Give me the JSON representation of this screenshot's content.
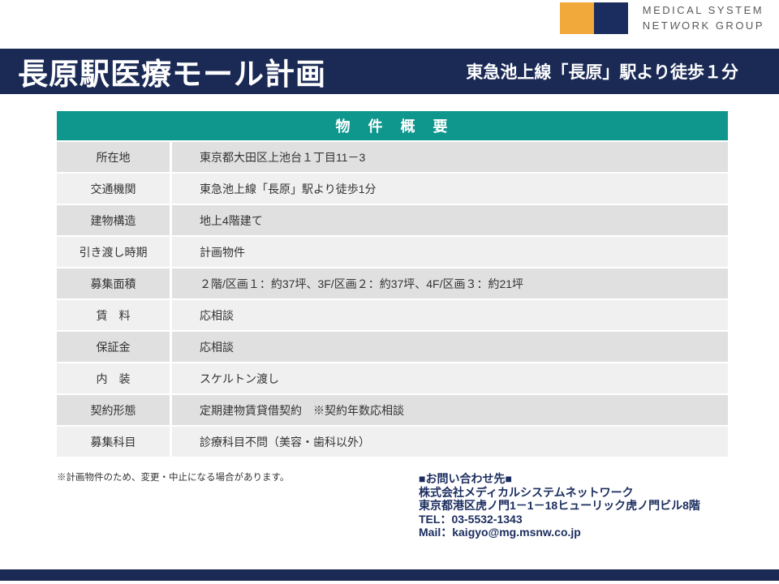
{
  "logo": {
    "line1": "MEDICAL SYSTEM",
    "line2_pre": "NET",
    "line2_w": "W",
    "line2_post": "ORK GROUP"
  },
  "header": {
    "title": "長原駅医療モール計画",
    "subtitle": "東急池上線「長原」駅より徒歩１分"
  },
  "table": {
    "header": "物　件　概　要",
    "rows": [
      {
        "label": "所在地",
        "value": "東京都大田区上池台１丁目11－3"
      },
      {
        "label": "交通機関",
        "value": "東急池上線「長原」駅より徒歩1分"
      },
      {
        "label": "建物構造",
        "value": "地上4階建て"
      },
      {
        "label": "引き渡し時期",
        "value": "計画物件"
      },
      {
        "label": "募集面積",
        "value": "２階/区画１：約37坪、3F/区画２：約37坪、4F/区画３：約21坪"
      },
      {
        "label": "賃　料",
        "value": "応相談"
      },
      {
        "label": "保証金",
        "value": "応相談"
      },
      {
        "label": "内　装",
        "value": "スケルトン渡し"
      },
      {
        "label": "契約形態",
        "value": "定期建物賃貸借契約　※契約年数応相談"
      },
      {
        "label": "募集科目",
        "value": "診療科目不問（美容・歯科以外）"
      }
    ]
  },
  "footer": {
    "note": "※計画物件のため、変更・中止になる場合があります。",
    "contact": {
      "heading": "■お問い合わせ先■",
      "company": "株式会社メディカルシステムネットワーク",
      "address": "東京都港区虎ノ門1－1－18ヒューリック虎ノ門ビル8階",
      "tel": "TEL：03-5532-1343",
      "mail": "Mail：kaigyo@mg.msnw.co.jp"
    }
  },
  "colors": {
    "brand_navy": "#1b2a55",
    "logo_navy": "#1b2d5e",
    "logo_orange": "#f2a93c",
    "table_teal": "#0f978e",
    "row_gray": "#e0e0e0",
    "row_light": "#f0f0f0",
    "contact_navy": "#1b2d5e"
  }
}
